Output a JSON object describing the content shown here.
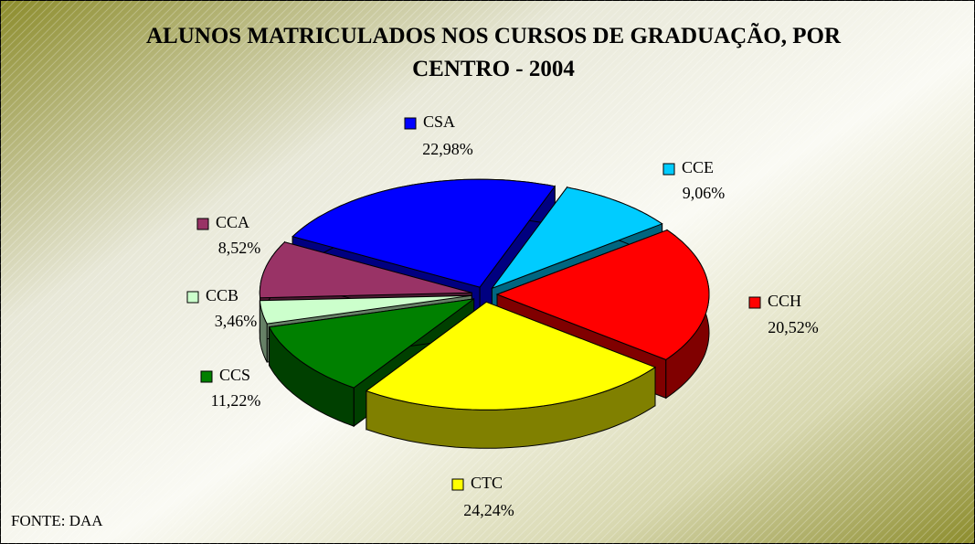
{
  "chart_data": {
    "type": "pie",
    "title": "ALUNOS MATRICULADOS NOS CURSOS DE GRADUAÇÃO, POR CENTRO - 2004",
    "source": "FONTE: DAA",
    "categories": [
      "CSA",
      "CCE",
      "CCH",
      "CTC",
      "CCS",
      "CCB",
      "CCA"
    ],
    "values": [
      22.98,
      9.06,
      20.52,
      24.24,
      11.22,
      3.46,
      8.52
    ],
    "value_labels": [
      "22,98%",
      "9,06%",
      "20,52%",
      "24,24%",
      "11,22%",
      "3,46%",
      "8,52%"
    ],
    "colors": [
      "#0000ff",
      "#00ccff",
      "#ff0000",
      "#ffff00",
      "#008000",
      "#ccffcc",
      "#993366"
    ]
  }
}
